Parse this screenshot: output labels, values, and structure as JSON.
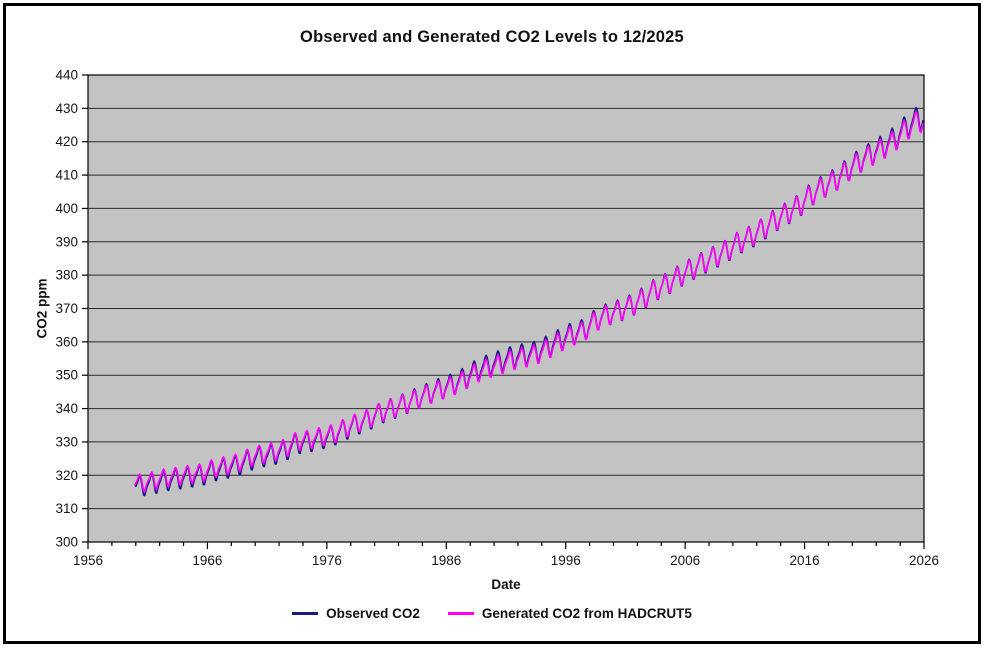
{
  "chart_data": {
    "type": "line",
    "title": "Observed and Generated CO2 Levels to 12/2025",
    "xlabel": "Date",
    "ylabel": "CO2 ppm",
    "x_range": [
      1956,
      2026
    ],
    "y_range": [
      300,
      440
    ],
    "x_major_ticks": [
      1956,
      1966,
      1976,
      1986,
      1996,
      2006,
      2016,
      2026
    ],
    "x_minor_step": 2,
    "y_tick_step": 10,
    "grid": "horizontal",
    "plot_background": "#c3c3c3",
    "gridline_color": "#2b2b2b",
    "axis_color": "#000000",
    "legend_position": "bottom-center",
    "seasonal_profile_monthly": [
      -0.2,
      0.5,
      1.3,
      2.5,
      3.0,
      2.3,
      0.7,
      -1.4,
      -3.1,
      -3.3,
      -2.1,
      -0.9
    ],
    "series": [
      {
        "name": "Observed CO2",
        "color": "#1c1c80",
        "start": 1960.0,
        "end": 2025.96,
        "annual_start_year": 1960,
        "seasonal_amp_start": 0.95,
        "seasonal_amp_end": 1.12,
        "annual_means": [
          316.9,
          317.6,
          318.5,
          319.0,
          319.6,
          320.0,
          321.4,
          322.2,
          323.0,
          324.6,
          325.7,
          326.3,
          327.5,
          329.7,
          330.2,
          331.1,
          332.0,
          333.8,
          335.4,
          336.8,
          338.8,
          340.1,
          341.5,
          343.1,
          344.7,
          346.1,
          347.4,
          349.2,
          351.6,
          353.1,
          354.4,
          355.6,
          356.4,
          357.1,
          358.8,
          360.8,
          362.6,
          363.7,
          366.7,
          368.4,
          369.5,
          371.1,
          373.2,
          375.8,
          377.5,
          379.8,
          381.9,
          383.8,
          385.6,
          387.4,
          389.9,
          391.6,
          393.9,
          396.5,
          398.6,
          400.8,
          404.2,
          406.6,
          408.5,
          411.4,
          414.2,
          416.4,
          418.6,
          421.1,
          424.6,
          427.3
        ]
      },
      {
        "name": "Generated CO2 from HADCRUT5",
        "color": "#ff00ff",
        "start": 1959.92,
        "end": 2025.96,
        "annual_start_year": 1960,
        "seasonal_amp_start": 0.85,
        "seasonal_amp_end": 1.05,
        "annual_means": [
          317.8,
          318.5,
          319.4,
          319.8,
          320.4,
          320.8,
          322.2,
          323.0,
          323.8,
          325.4,
          326.5,
          327.1,
          328.2,
          330.4,
          330.8,
          331.7,
          332.5,
          334.2,
          335.8,
          337.1,
          339.0,
          340.2,
          341.5,
          342.9,
          344.4,
          345.7,
          346.9,
          348.6,
          350.8,
          352.2,
          353.4,
          354.7,
          355.5,
          356.3,
          358.0,
          360.1,
          362.0,
          363.2,
          366.4,
          368.2,
          369.4,
          371.0,
          373.1,
          375.8,
          377.5,
          379.8,
          381.9,
          383.8,
          385.7,
          387.5,
          390.0,
          391.7,
          394.0,
          396.5,
          398.6,
          400.8,
          404.1,
          406.4,
          408.3,
          411.1,
          413.8,
          415.9,
          418.0,
          420.3,
          423.7,
          426.3
        ]
      }
    ]
  }
}
